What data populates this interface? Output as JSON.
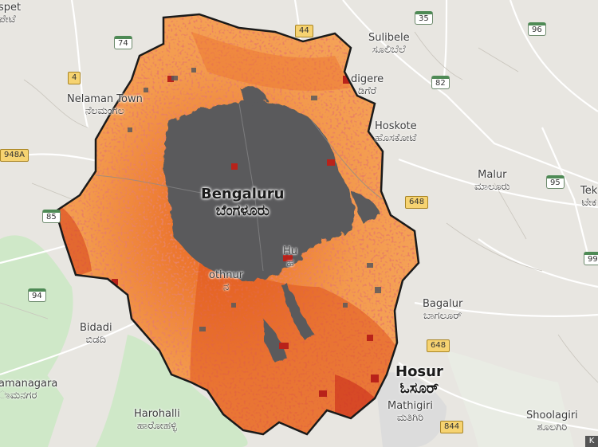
{
  "map": {
    "colors": {
      "base_land": "#e8e6e1",
      "green_area": "#cfe8c8",
      "road_major": "#ffffff",
      "road_minor": "#d6d3cc",
      "urban_core": "#5a5a5c",
      "heat_low": "#fbb36a",
      "heat_mid": "#f07f3c",
      "heat_high": "#d1371f",
      "heat_max": "#a51d1d",
      "boundary": "#1a1a1a"
    },
    "places": [
      {
        "id": "bengaluru",
        "en": "Bengaluru",
        "kn": "ಬೆಂಗಳೂರು",
        "type": "city"
      },
      {
        "id": "nelamangala",
        "en": "Nelaman Town",
        "kn": "ನೆಲಮಂಗಲ",
        "type": "town"
      },
      {
        "id": "sulibele",
        "en": "Sulibele",
        "kn": "ಸೂಲಿಬೆಲೆ",
        "type": "town"
      },
      {
        "id": "vadigere",
        "en": "digere",
        "kn": "ಡಿಗೆರೆ",
        "type": "town"
      },
      {
        "id": "hoskote",
        "en": "Hoskote",
        "kn": "ಹೊಸಕೋಟೆ",
        "type": "town"
      },
      {
        "id": "malur",
        "en": "Malur",
        "kn": "ಮಾಲೂರು",
        "type": "town"
      },
      {
        "id": "tekal",
        "en": "Tek",
        "kn": "ಟೇಕ",
        "type": "town"
      },
      {
        "id": "bagalur",
        "en": "Bagalur",
        "kn": "ಬಾಗಲೂರ್",
        "type": "town"
      },
      {
        "id": "hosur",
        "en": "Hosur",
        "kn": "ಓಸೂರ್",
        "type": "city"
      },
      {
        "id": "mathigiri",
        "en": "Mathigiri",
        "kn": "ಮತಿಗಿರಿ",
        "type": "town"
      },
      {
        "id": "shoolagiri",
        "en": "Shoolagiri",
        "kn": "ಶೂಲಗಿರಿ",
        "type": "town"
      },
      {
        "id": "harohalli",
        "en": "Harohalli",
        "kn": "ಹಾರೋಹಳ್ಳಿ",
        "type": "town"
      },
      {
        "id": "bidadi",
        "en": "Bidadi",
        "kn": "ಬಿಡದಿ",
        "type": "town"
      },
      {
        "id": "ramanagara",
        "en": "amanagara",
        "kn": "ಾಮನಗರ",
        "type": "town"
      },
      {
        "id": "dobbaspet",
        "en": "spet",
        "kn": "ಪೇಟೆ",
        "type": "town"
      },
      {
        "id": "kothnur",
        "en": "othnur",
        "kn": "ನ",
        "type": "town"
      },
      {
        "id": "hulimavu",
        "en": "Hu",
        "kn": "ಹ",
        "type": "town"
      }
    ],
    "shields": [
      {
        "id": "r74",
        "label": "74",
        "kind": "nh"
      },
      {
        "id": "r44",
        "label": "44",
        "kind": "sh"
      },
      {
        "id": "r35",
        "label": "35",
        "kind": "nh"
      },
      {
        "id": "r96",
        "label": "96",
        "kind": "nh"
      },
      {
        "id": "r4",
        "label": "4",
        "kind": "sh"
      },
      {
        "id": "r82",
        "label": "82",
        "kind": "nh"
      },
      {
        "id": "r948a",
        "label": "948A",
        "kind": "sh"
      },
      {
        "id": "r648a",
        "label": "648",
        "kind": "sh"
      },
      {
        "id": "r95",
        "label": "95",
        "kind": "nh"
      },
      {
        "id": "r85",
        "label": "85",
        "kind": "nh"
      },
      {
        "id": "r99",
        "label": "99",
        "kind": "nh"
      },
      {
        "id": "r94",
        "label": "94",
        "kind": "nh"
      },
      {
        "id": "r648b",
        "label": "648",
        "kind": "sh"
      },
      {
        "id": "r844",
        "label": "844",
        "kind": "sh"
      }
    ],
    "attribution": "K"
  }
}
